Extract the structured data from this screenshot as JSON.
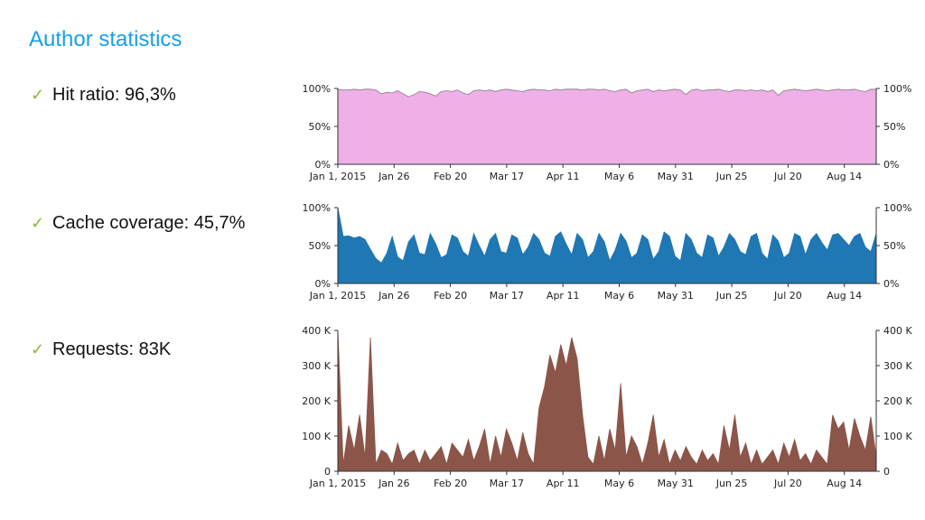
{
  "page": {
    "title": "Author statistics"
  },
  "bullets": [
    {
      "label": "Hit ratio: 96,3%"
    },
    {
      "label": "Cache coverage: 45,7%"
    },
    {
      "label": "Requests: 83K"
    }
  ],
  "icons": {
    "bullet": "check-icon"
  },
  "colors": {
    "title": "#1a9fe6",
    "check": "#8db83a"
  },
  "chart_data": [
    {
      "type": "area",
      "x_ticks": [
        "Jan 1, 2015",
        "Jan 26",
        "Feb 20",
        "Mar 17",
        "Apr 11",
        "May 6",
        "May 31",
        "Jun 25",
        "Jul 20",
        "Aug 14"
      ],
      "y_ticks": [
        "0%",
        "50%",
        "100%"
      ],
      "ylim": [
        0,
        100
      ],
      "color": "#eeb0e6",
      "line_color": "#8a7a88",
      "values": [
        99,
        98,
        98,
        99,
        98,
        99,
        99,
        98,
        93,
        95,
        94,
        97,
        93,
        89,
        92,
        96,
        95,
        93,
        90,
        96,
        97,
        96,
        98,
        94,
        92,
        97,
        98,
        97,
        98,
        96,
        98,
        99,
        98,
        97,
        96,
        98,
        99,
        98,
        98,
        97,
        99,
        98,
        99,
        99,
        99,
        98,
        99,
        99,
        98,
        99,
        97,
        96,
        98,
        99,
        94,
        97,
        98,
        99,
        96,
        98,
        97,
        98,
        99,
        98,
        92,
        98,
        99,
        97,
        98,
        98,
        99,
        97,
        96,
        98,
        98,
        97,
        98,
        97,
        98,
        96,
        98,
        91,
        97,
        98,
        99,
        98,
        97,
        98,
        99,
        98,
        97,
        98,
        99,
        98,
        98,
        99,
        97,
        96,
        99,
        99
      ]
    },
    {
      "type": "area",
      "x_ticks": [
        "Jan 1, 2015",
        "Jan 26",
        "Feb 20",
        "Mar 17",
        "Apr 11",
        "May 6",
        "May 31",
        "Jun 25",
        "Jul 20",
        "Aug 14"
      ],
      "y_ticks": [
        "0%",
        "50%",
        "100%"
      ],
      "ylim": [
        0,
        100
      ],
      "color": "#1f77b4",
      "line_color": "#1f77b4",
      "values": [
        100,
        62,
        63,
        60,
        62,
        58,
        45,
        33,
        27,
        40,
        62,
        35,
        30,
        55,
        64,
        40,
        38,
        66,
        52,
        34,
        38,
        64,
        60,
        42,
        36,
        66,
        50,
        36,
        58,
        66,
        42,
        40,
        64,
        60,
        38,
        48,
        66,
        58,
        40,
        36,
        62,
        68,
        52,
        38,
        66,
        58,
        34,
        42,
        66,
        55,
        30,
        44,
        66,
        56,
        34,
        40,
        64,
        58,
        32,
        42,
        68,
        62,
        36,
        30,
        66,
        58,
        40,
        34,
        64,
        60,
        36,
        48,
        66,
        58,
        42,
        38,
        62,
        66,
        40,
        32,
        64,
        56,
        34,
        40,
        66,
        62,
        38,
        58,
        66,
        54,
        44,
        64,
        66,
        58,
        50,
        62,
        66,
        48,
        42,
        66
      ]
    },
    {
      "type": "area",
      "x_ticks": [
        "Jan 1, 2015",
        "Jan 26",
        "Feb 20",
        "Mar 17",
        "Apr 11",
        "May 6",
        "May 31",
        "Jun 25",
        "Jul 20",
        "Aug 14"
      ],
      "y_ticks": [
        "0",
        "100 K",
        "200 K",
        "300 K",
        "400 K"
      ],
      "y_ticks_right": [
        "0",
        "100 K",
        "200 K",
        "300 K",
        "400 K"
      ],
      "ylim": [
        0,
        400000
      ],
      "color": "#8c5549",
      "line_color": "#8c5549",
      "values": [
        400000,
        20000,
        130000,
        60000,
        160000,
        40000,
        380000,
        20000,
        60000,
        50000,
        20000,
        80000,
        30000,
        50000,
        60000,
        20000,
        60000,
        30000,
        50000,
        70000,
        20000,
        80000,
        60000,
        40000,
        90000,
        30000,
        70000,
        120000,
        20000,
        100000,
        40000,
        120000,
        80000,
        30000,
        110000,
        50000,
        20000,
        180000,
        240000,
        330000,
        280000,
        360000,
        300000,
        380000,
        320000,
        160000,
        40000,
        20000,
        100000,
        30000,
        120000,
        60000,
        250000,
        40000,
        100000,
        70000,
        20000,
        80000,
        160000,
        40000,
        90000,
        20000,
        60000,
        30000,
        70000,
        40000,
        20000,
        60000,
        30000,
        50000,
        20000,
        130000,
        60000,
        160000,
        40000,
        80000,
        20000,
        60000,
        20000,
        40000,
        60000,
        20000,
        80000,
        40000,
        90000,
        30000,
        50000,
        20000,
        60000,
        40000,
        20000,
        160000,
        120000,
        140000,
        60000,
        150000,
        100000,
        60000,
        155000,
        40000
      ]
    }
  ]
}
